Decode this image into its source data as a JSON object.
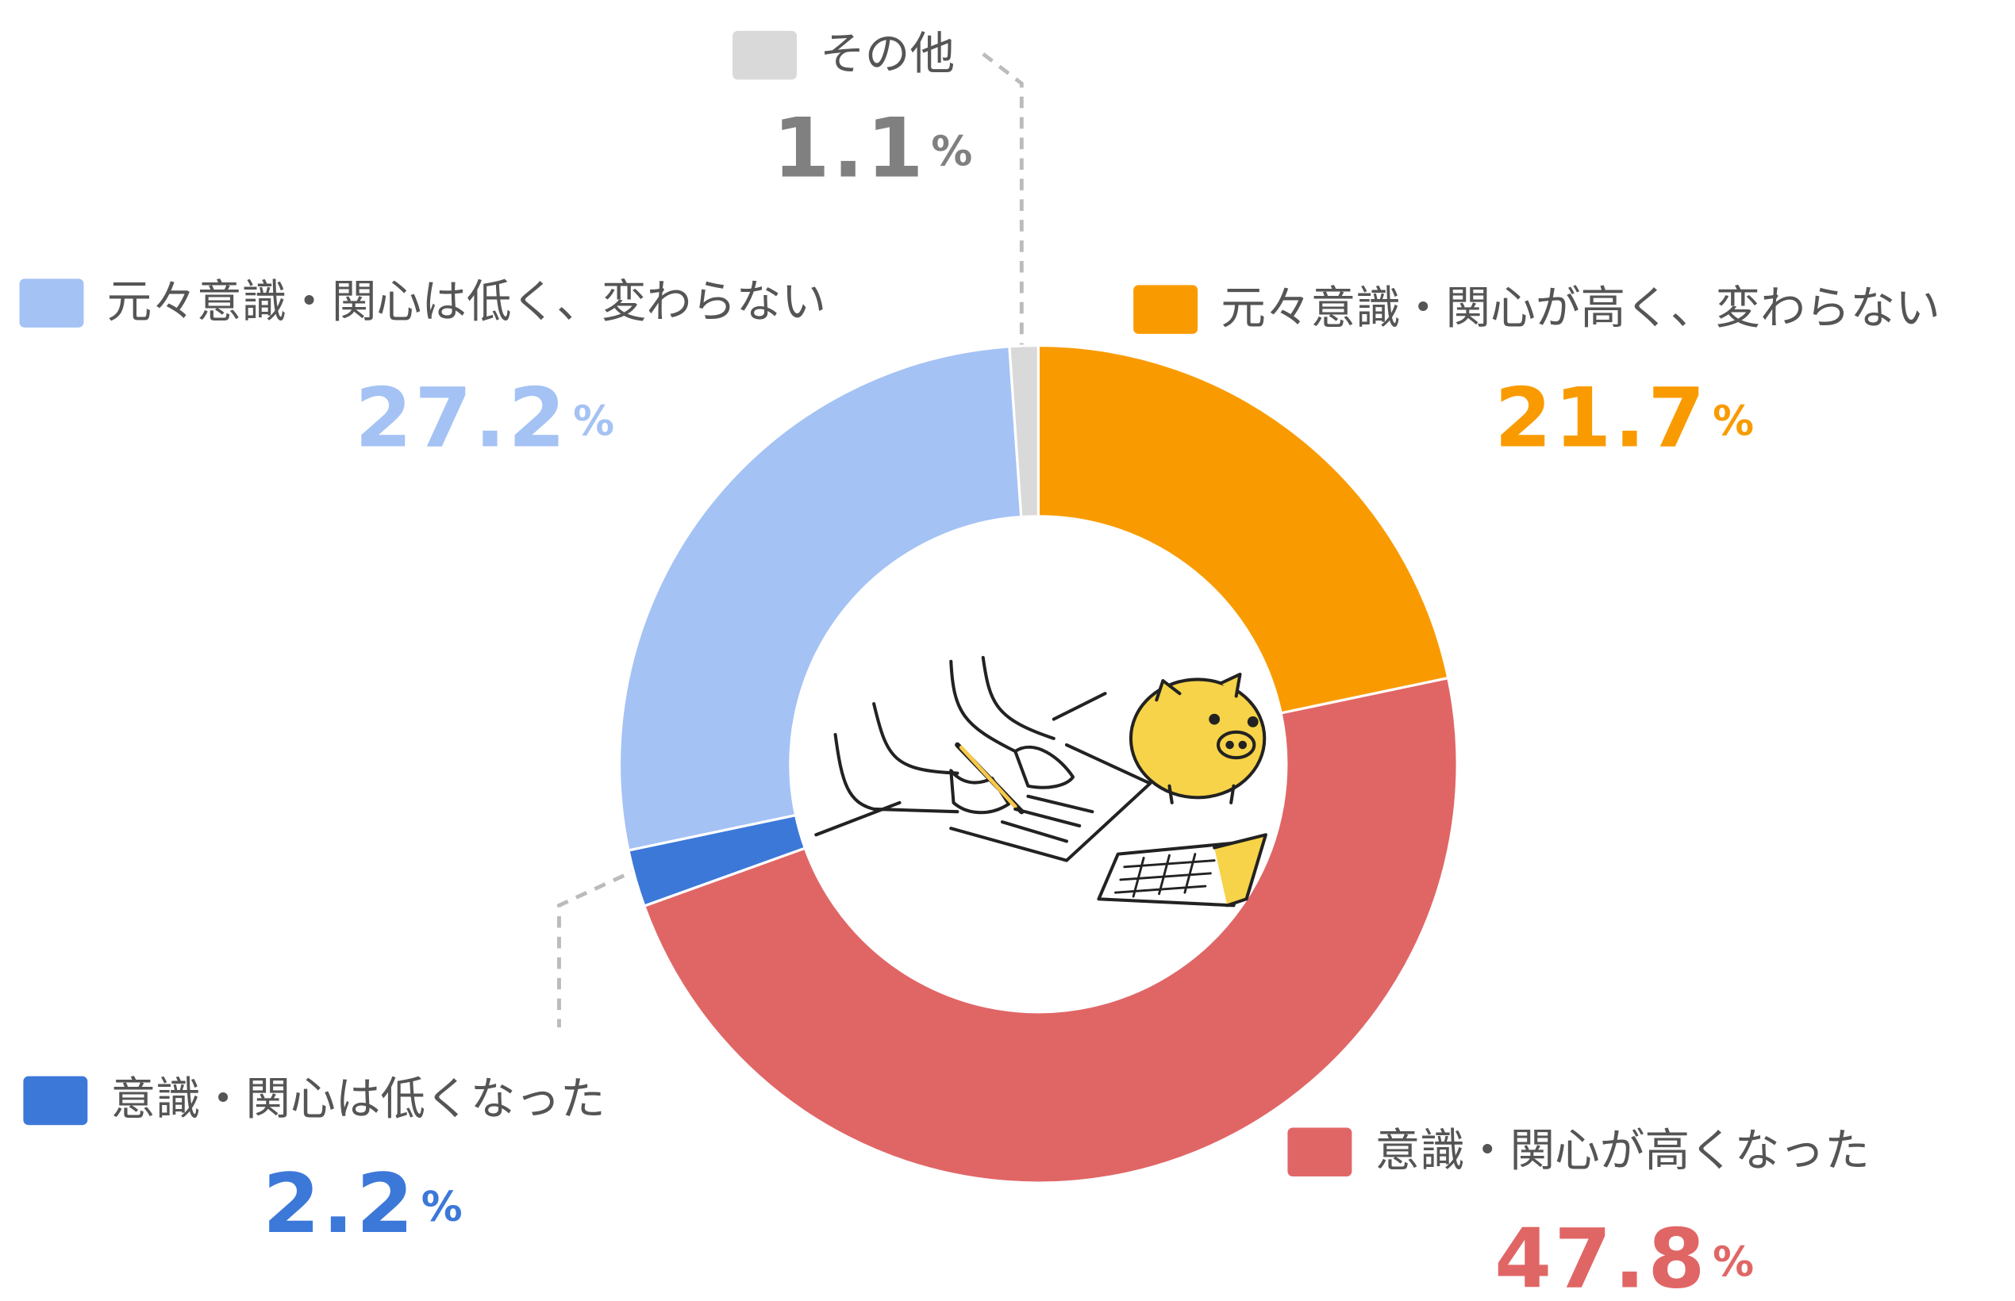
{
  "chart_data": {
    "type": "donut",
    "unit": "%",
    "series": [
      {
        "name": "元々意識・関心が高く、変わらない",
        "color": "#f99b00",
        "label_color": "#f99b00",
        "values": [
          21.7
        ]
      },
      {
        "name": "意識・関心が高くなった",
        "color": "#e06666",
        "label_color": "#e06666",
        "values": [
          47.8
        ]
      },
      {
        "name": "意識・関心は低くなった",
        "color": "#3c78d8",
        "label_color": "#3c78d8",
        "values": [
          2.2
        ]
      },
      {
        "name": "元々意識・関心は低く、変わらない",
        "color": "#a4c2f4",
        "label_color": "#a4c2f4",
        "values": [
          27.2
        ]
      },
      {
        "name": "その他",
        "color": "#d9d9d9",
        "label_color": "#808080",
        "values": [
          1.1
        ]
      }
    ]
  }
}
